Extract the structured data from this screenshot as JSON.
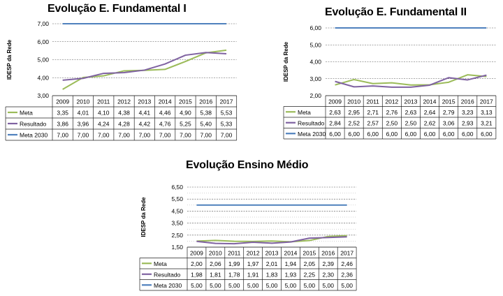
{
  "chart_data": [
    {
      "type": "line",
      "title": "Evolução E. Fundamental I",
      "ylabel": "IDESP da Rede",
      "categories": [
        "2009",
        "2010",
        "2011",
        "2012",
        "2013",
        "2014",
        "2015",
        "2016",
        "2017"
      ],
      "ylim": [
        3.0,
        7.0
      ],
      "yticks": [
        "3,00",
        "4,00",
        "5,00",
        "6,00",
        "7,00"
      ],
      "series": [
        {
          "name": "Meta",
          "color": "#9bbb59",
          "values": [
            3.35,
            4.01,
            4.1,
            4.38,
            4.41,
            4.46,
            4.9,
            5.38,
            5.53
          ],
          "labels": [
            "3,35",
            "4,01",
            "4,10",
            "4,38",
            "4,41",
            "4,46",
            "4,90",
            "5,38",
            "5,53"
          ]
        },
        {
          "name": "Resultado",
          "color": "#7f62a1",
          "values": [
            3.86,
            3.96,
            4.24,
            4.28,
            4.42,
            4.76,
            5.25,
            5.4,
            5.33
          ],
          "labels": [
            "3,86",
            "3,96",
            "4,24",
            "4,28",
            "4,42",
            "4,76",
            "5,25",
            "5,40",
            "5,33"
          ]
        },
        {
          "name": "Meta 2030",
          "color": "#4f81bd",
          "values": [
            7.0,
            7.0,
            7.0,
            7.0,
            7.0,
            7.0,
            7.0,
            7.0,
            7.0
          ],
          "labels": [
            "7,00",
            "7,00",
            "7,00",
            "7,00",
            "7,00",
            "7,00",
            "7,00",
            "7,00",
            "7,00"
          ]
        }
      ]
    },
    {
      "type": "line",
      "title": "Evolução E. Fundamental II",
      "ylabel": "IDESP da Rede",
      "categories": [
        "2009",
        "2010",
        "2011",
        "2012",
        "2013",
        "2014",
        "2015",
        "2016",
        "2017"
      ],
      "ylim": [
        2.0,
        6.0
      ],
      "yticks": [
        "2,00",
        "3,00",
        "4,00",
        "5,00",
        "6,00"
      ],
      "series": [
        {
          "name": "Meta",
          "color": "#9bbb59",
          "values": [
            2.63,
            2.95,
            2.71,
            2.76,
            2.63,
            2.64,
            2.79,
            3.23,
            3.13
          ],
          "labels": [
            "2,63",
            "2,95",
            "2,71",
            "2,76",
            "2,63",
            "2,64",
            "2,79",
            "3,23",
            "3,13"
          ]
        },
        {
          "name": "Resultado",
          "color": "#7f62a1",
          "values": [
            2.84,
            2.52,
            2.57,
            2.5,
            2.5,
            2.62,
            3.06,
            2.93,
            3.21
          ],
          "labels": [
            "2,84",
            "2,52",
            "2,57",
            "2,50",
            "2,50",
            "2,62",
            "3,06",
            "2,93",
            "3,21"
          ]
        },
        {
          "name": "Meta 2030",
          "color": "#4f81bd",
          "values": [
            6.0,
            6.0,
            6.0,
            6.0,
            6.0,
            6.0,
            6.0,
            6.0,
            6.0
          ],
          "labels": [
            "6,00",
            "6,00",
            "6,00",
            "6,00",
            "6,00",
            "6,00",
            "6,00",
            "6,00",
            "6,00"
          ]
        }
      ]
    },
    {
      "type": "line",
      "title": "Evolução Ensino Médio",
      "ylabel": "IDESP da Rede",
      "categories": [
        "2009",
        "2010",
        "2011",
        "2012",
        "2013",
        "2014",
        "2015",
        "2016",
        "2017"
      ],
      "ylim": [
        1.5,
        6.5
      ],
      "yticks": [
        "1,50",
        "2,50",
        "3,50",
        "4,50",
        "5,50",
        "6,50"
      ],
      "yticks_minor": [
        "2,00",
        "3,00",
        "4,00",
        "5,00",
        "6,00"
      ],
      "series": [
        {
          "name": "Meta",
          "color": "#9bbb59",
          "values": [
            2.0,
            2.06,
            1.99,
            1.97,
            2.01,
            1.94,
            2.05,
            2.39,
            2.46
          ],
          "labels": [
            "2,00",
            "2,06",
            "1,99",
            "1,97",
            "2,01",
            "1,94",
            "2,05",
            "2,39",
            "2,46"
          ]
        },
        {
          "name": "Resultado",
          "color": "#7f62a1",
          "values": [
            1.98,
            1.81,
            1.78,
            1.91,
            1.83,
            1.93,
            2.25,
            2.3,
            2.36
          ],
          "labels": [
            "1,98",
            "1,81",
            "1,78",
            "1,91",
            "1,83",
            "1,93",
            "2,25",
            "2,30",
            "2,36"
          ]
        },
        {
          "name": "Meta 2030",
          "color": "#4f81bd",
          "values": [
            5.0,
            5.0,
            5.0,
            5.0,
            5.0,
            5.0,
            5.0,
            5.0,
            5.0
          ],
          "labels": [
            "5,00",
            "5,00",
            "5,00",
            "5,00",
            "5,00",
            "5,00",
            "5,00",
            "5,00",
            "5,00"
          ]
        }
      ]
    }
  ]
}
